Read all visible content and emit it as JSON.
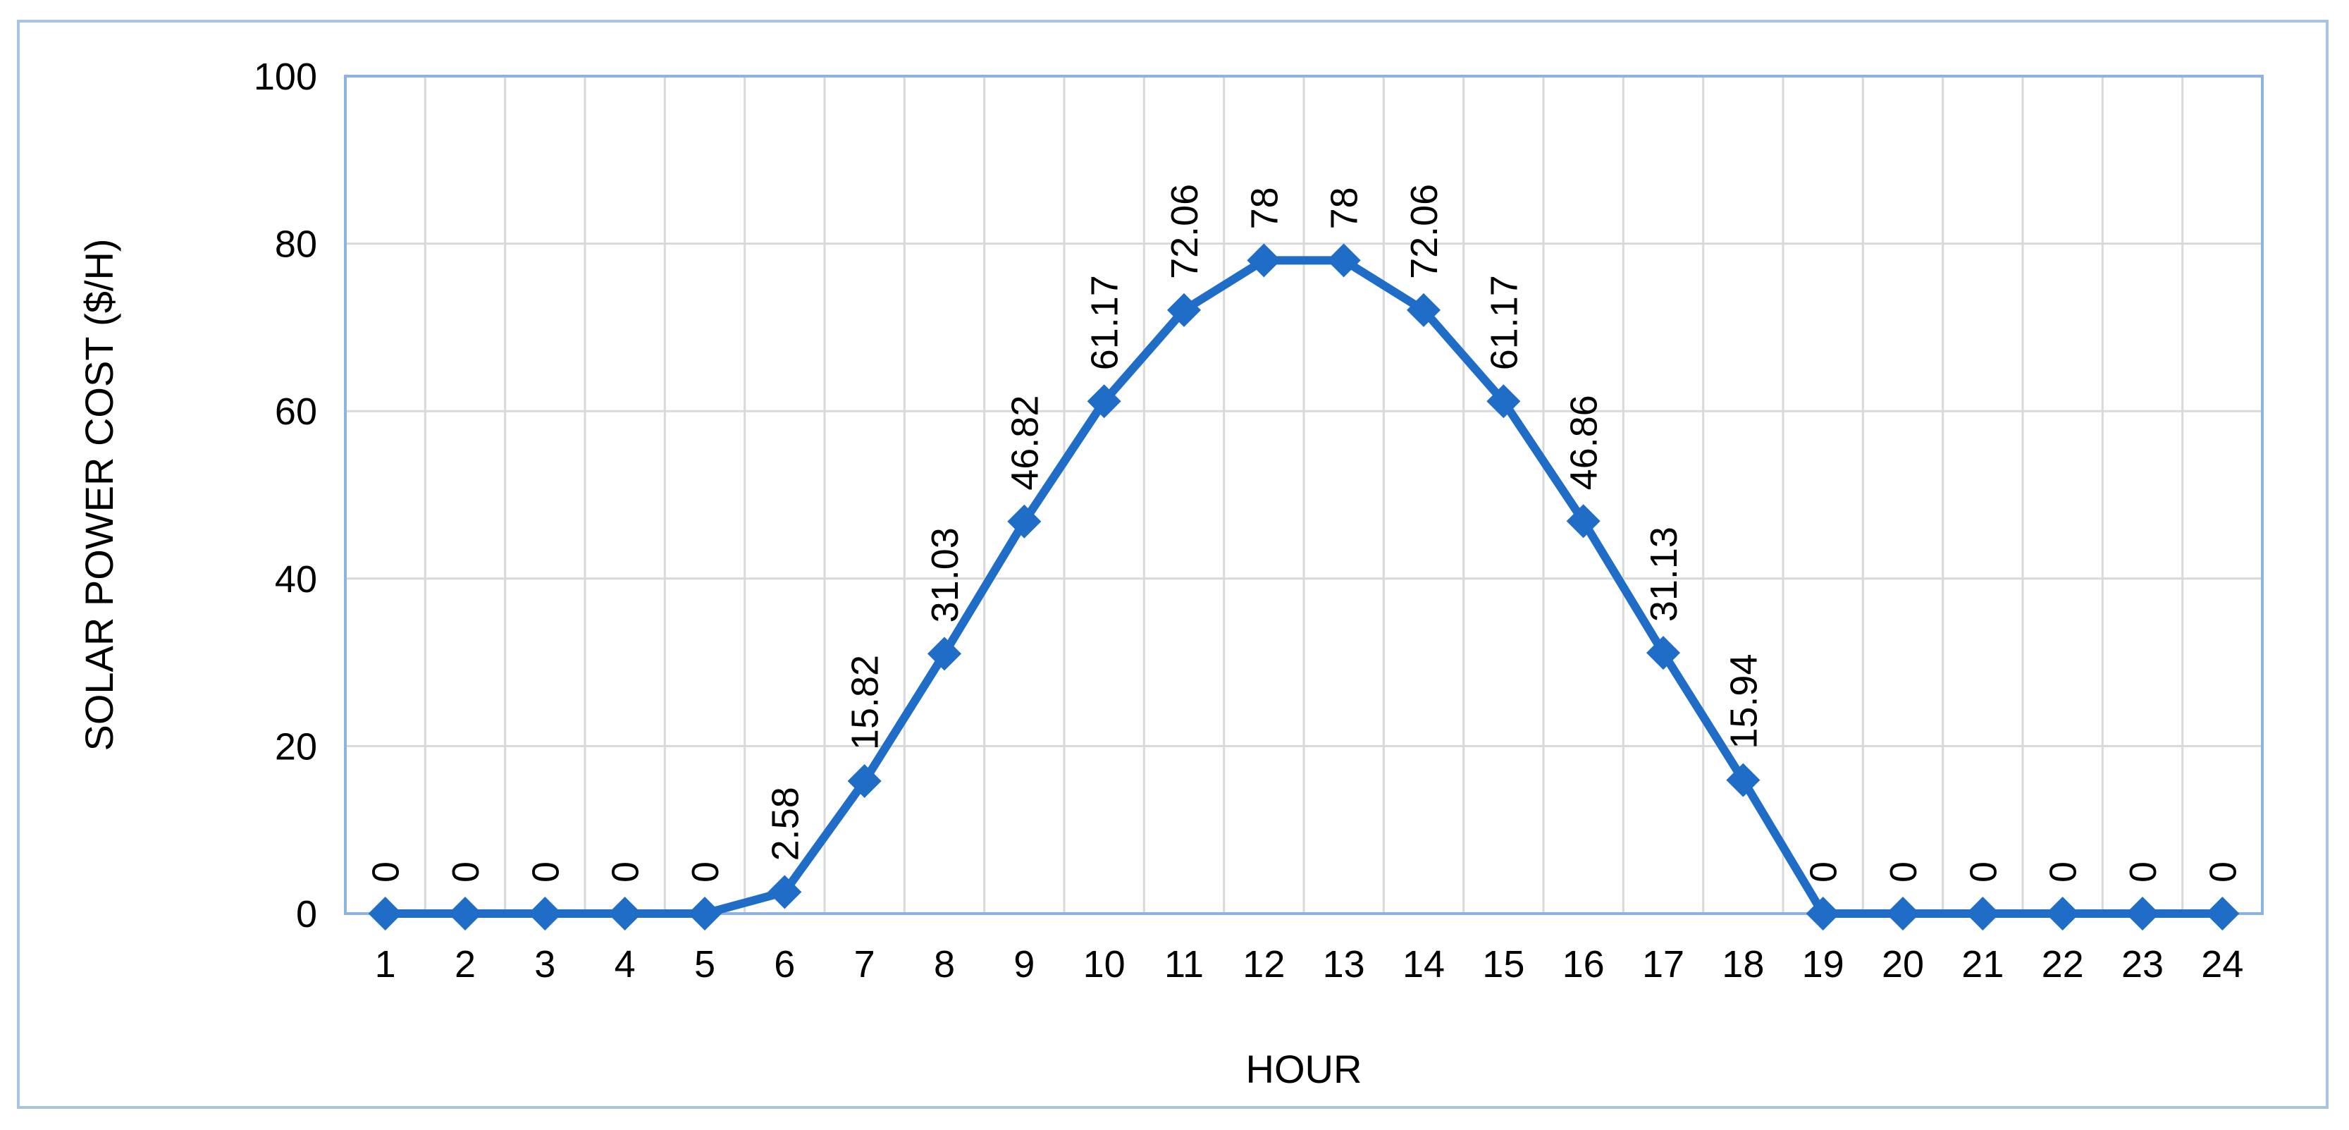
{
  "chart_data": {
    "type": "line",
    "title": "",
    "xlabel": "HOUR",
    "ylabel": "SOLAR POWER COST ($/H)",
    "categories": [
      "1",
      "2",
      "3",
      "4",
      "5",
      "6",
      "7",
      "8",
      "9",
      "10",
      "11",
      "12",
      "13",
      "14",
      "15",
      "16",
      "17",
      "18",
      "19",
      "20",
      "21",
      "22",
      "23",
      "24"
    ],
    "values": [
      0,
      0,
      0,
      0,
      0,
      2.58,
      15.82,
      31.03,
      46.82,
      61.17,
      72.06,
      78,
      78,
      72.06,
      61.17,
      46.86,
      31.13,
      15.94,
      0,
      0,
      0,
      0,
      0,
      0
    ],
    "data_labels": [
      "0",
      "0",
      "0",
      "0",
      "0",
      "2.58",
      "15.82",
      "31.03",
      "46.82",
      "61.17",
      "72.06",
      "78",
      "78",
      "72.06",
      "61.17",
      "46.86",
      "31.13",
      "15.94",
      "0",
      "0",
      "0",
      "0",
      "0",
      "0"
    ],
    "ylim": [
      0,
      100
    ],
    "yticks": [
      "0",
      "20",
      "40",
      "60",
      "80",
      "100"
    ],
    "grid": true,
    "marker": "diamond",
    "colors": {
      "series": "#1f6dc6",
      "grid": "#d9d9d9",
      "plot_border": "#8db3e2",
      "frame_border": "#a7c4e3"
    }
  }
}
